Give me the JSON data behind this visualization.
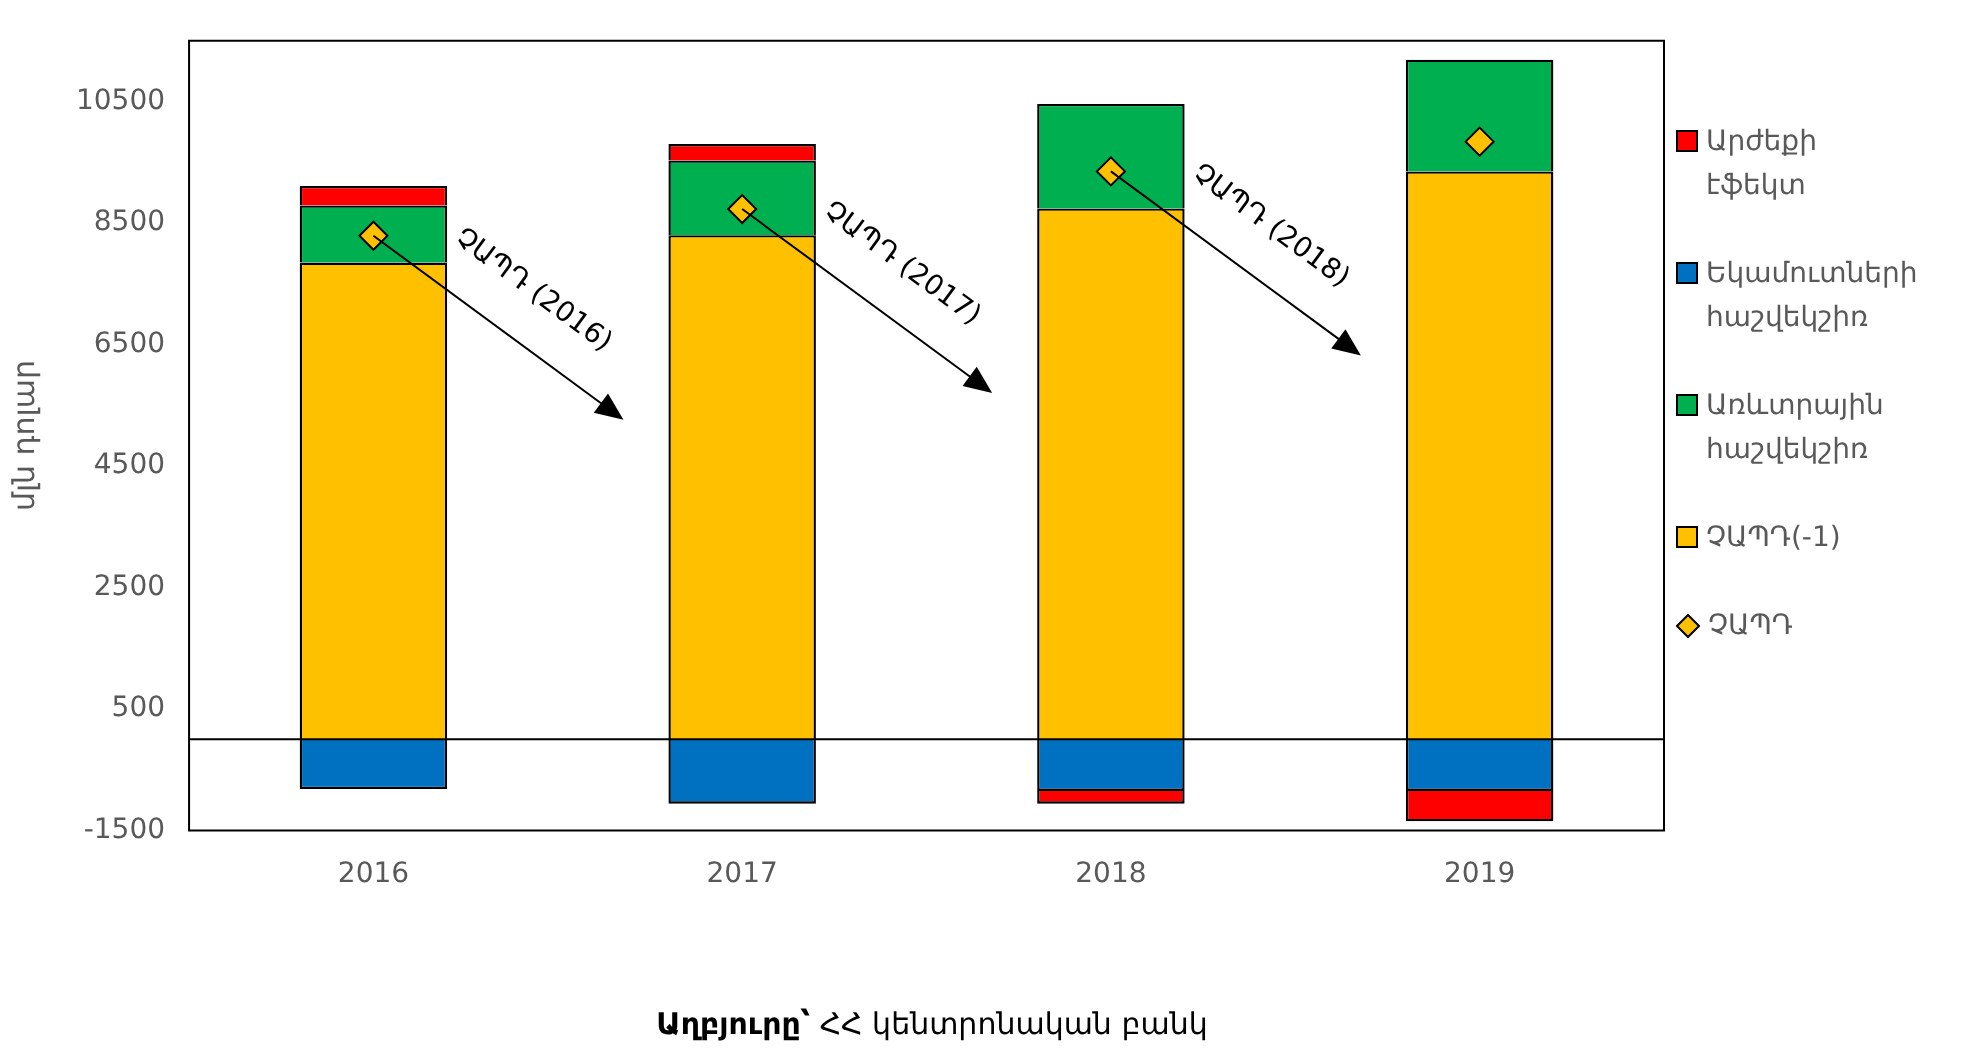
{
  "chart_data": {
    "type": "bar",
    "stacked": true,
    "categories": [
      "2016",
      "2017",
      "2018",
      "2019"
    ],
    "ylabel": "մլն դոլար",
    "ylim": [
      -1500,
      11500
    ],
    "yticks": [
      -1500,
      500,
      2500,
      4500,
      6500,
      8500,
      10500
    ],
    "grid": false,
    "legend": "right",
    "series": [
      {
        "name": "ՉԱՊԴ(-1)",
        "color": "#ffc000",
        "values": [
          7850,
          8300,
          8740,
          9350
        ]
      },
      {
        "name": "Առևտրային հաշվեկշիռ",
        "color": "#00b050",
        "values": [
          940,
          1230,
          1720,
          1840
        ]
      },
      {
        "name": "Եկամուտների հաշվեկշիռ",
        "color": "#0070c0",
        "values": [
          -820,
          -1060,
          -850,
          -850
        ]
      },
      {
        "name": "Արժեքի էֆեկտ",
        "color": "#ff0000",
        "values": [
          320,
          270,
          -210,
          -500
        ]
      },
      {
        "name": "ՉԱՊԴ",
        "type": "scatter",
        "marker": "diamond",
        "color": "#ffc000",
        "values": [
          8290,
          8730,
          9350,
          9840
        ]
      }
    ],
    "annotations": [
      {
        "text": "ՉԱՊԴ (2016)",
        "x": "2016",
        "y": 8290
      },
      {
        "text": "ՉԱՊԴ (2017)",
        "x": "2017",
        "y": 8730
      },
      {
        "text": "ՉԱՊԴ (2018)",
        "x": "2018",
        "y": 9350
      },
      "Աղբյուրը՝ ՀՀ կենտրոնական բանկ"
    ]
  }
}
